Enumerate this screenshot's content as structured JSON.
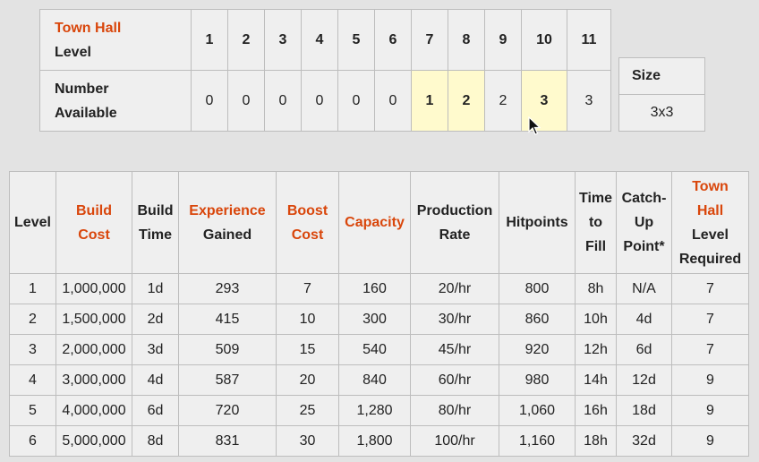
{
  "town_hall_table": {
    "header_line1": "Town Hall",
    "header_line2": "Level",
    "row2_line1": "Number",
    "row2_line2": "Available",
    "levels": [
      "1",
      "2",
      "3",
      "4",
      "5",
      "6",
      "7",
      "8",
      "9",
      "10",
      "11"
    ],
    "available": [
      "0",
      "0",
      "0",
      "0",
      "0",
      "0",
      "1",
      "2",
      "2",
      "3",
      "3"
    ]
  },
  "size_box": {
    "label": "Size",
    "value": "3x3"
  },
  "main_table": {
    "headers": [
      [
        "Level"
      ],
      [
        "Build",
        "Cost"
      ],
      [
        "Build",
        "Time"
      ],
      [
        "Experience",
        "Gained"
      ],
      [
        "Boost",
        "Cost"
      ],
      [
        "Capacity"
      ],
      [
        "Production",
        "Rate"
      ],
      [
        "Hitpoints"
      ],
      [
        "Time",
        "to",
        "Fill"
      ],
      [
        "Catch-",
        "Up",
        "Point*"
      ],
      [
        "Town",
        "Hall",
        "Level",
        "Required"
      ]
    ],
    "rows": [
      [
        "1",
        "1,000,000",
        "1d",
        "293",
        "7",
        "160",
        "20/hr",
        "800",
        "8h",
        "N/A",
        "7"
      ],
      [
        "2",
        "1,500,000",
        "2d",
        "415",
        "10",
        "300",
        "30/hr",
        "860",
        "10h",
        "4d",
        "7"
      ],
      [
        "3",
        "2,000,000",
        "3d",
        "509",
        "15",
        "540",
        "45/hr",
        "920",
        "12h",
        "6d",
        "7"
      ],
      [
        "4",
        "3,000,000",
        "4d",
        "587",
        "20",
        "840",
        "60/hr",
        "980",
        "14h",
        "12d",
        "9"
      ],
      [
        "5",
        "4,000,000",
        "6d",
        "720",
        "25",
        "1,280",
        "80/hr",
        "1,060",
        "16h",
        "18d",
        "9"
      ],
      [
        "6",
        "5,000,000",
        "8d",
        "831",
        "30",
        "1,800",
        "100/hr",
        "1,160",
        "18h",
        "32d",
        "9"
      ]
    ]
  },
  "colors": {
    "accent_orange": "#d9460b",
    "highlight_yellow": "#fffacd",
    "cell_bg": "#efefef"
  },
  "icons": {
    "cursor": "arrow-cursor-icon"
  }
}
